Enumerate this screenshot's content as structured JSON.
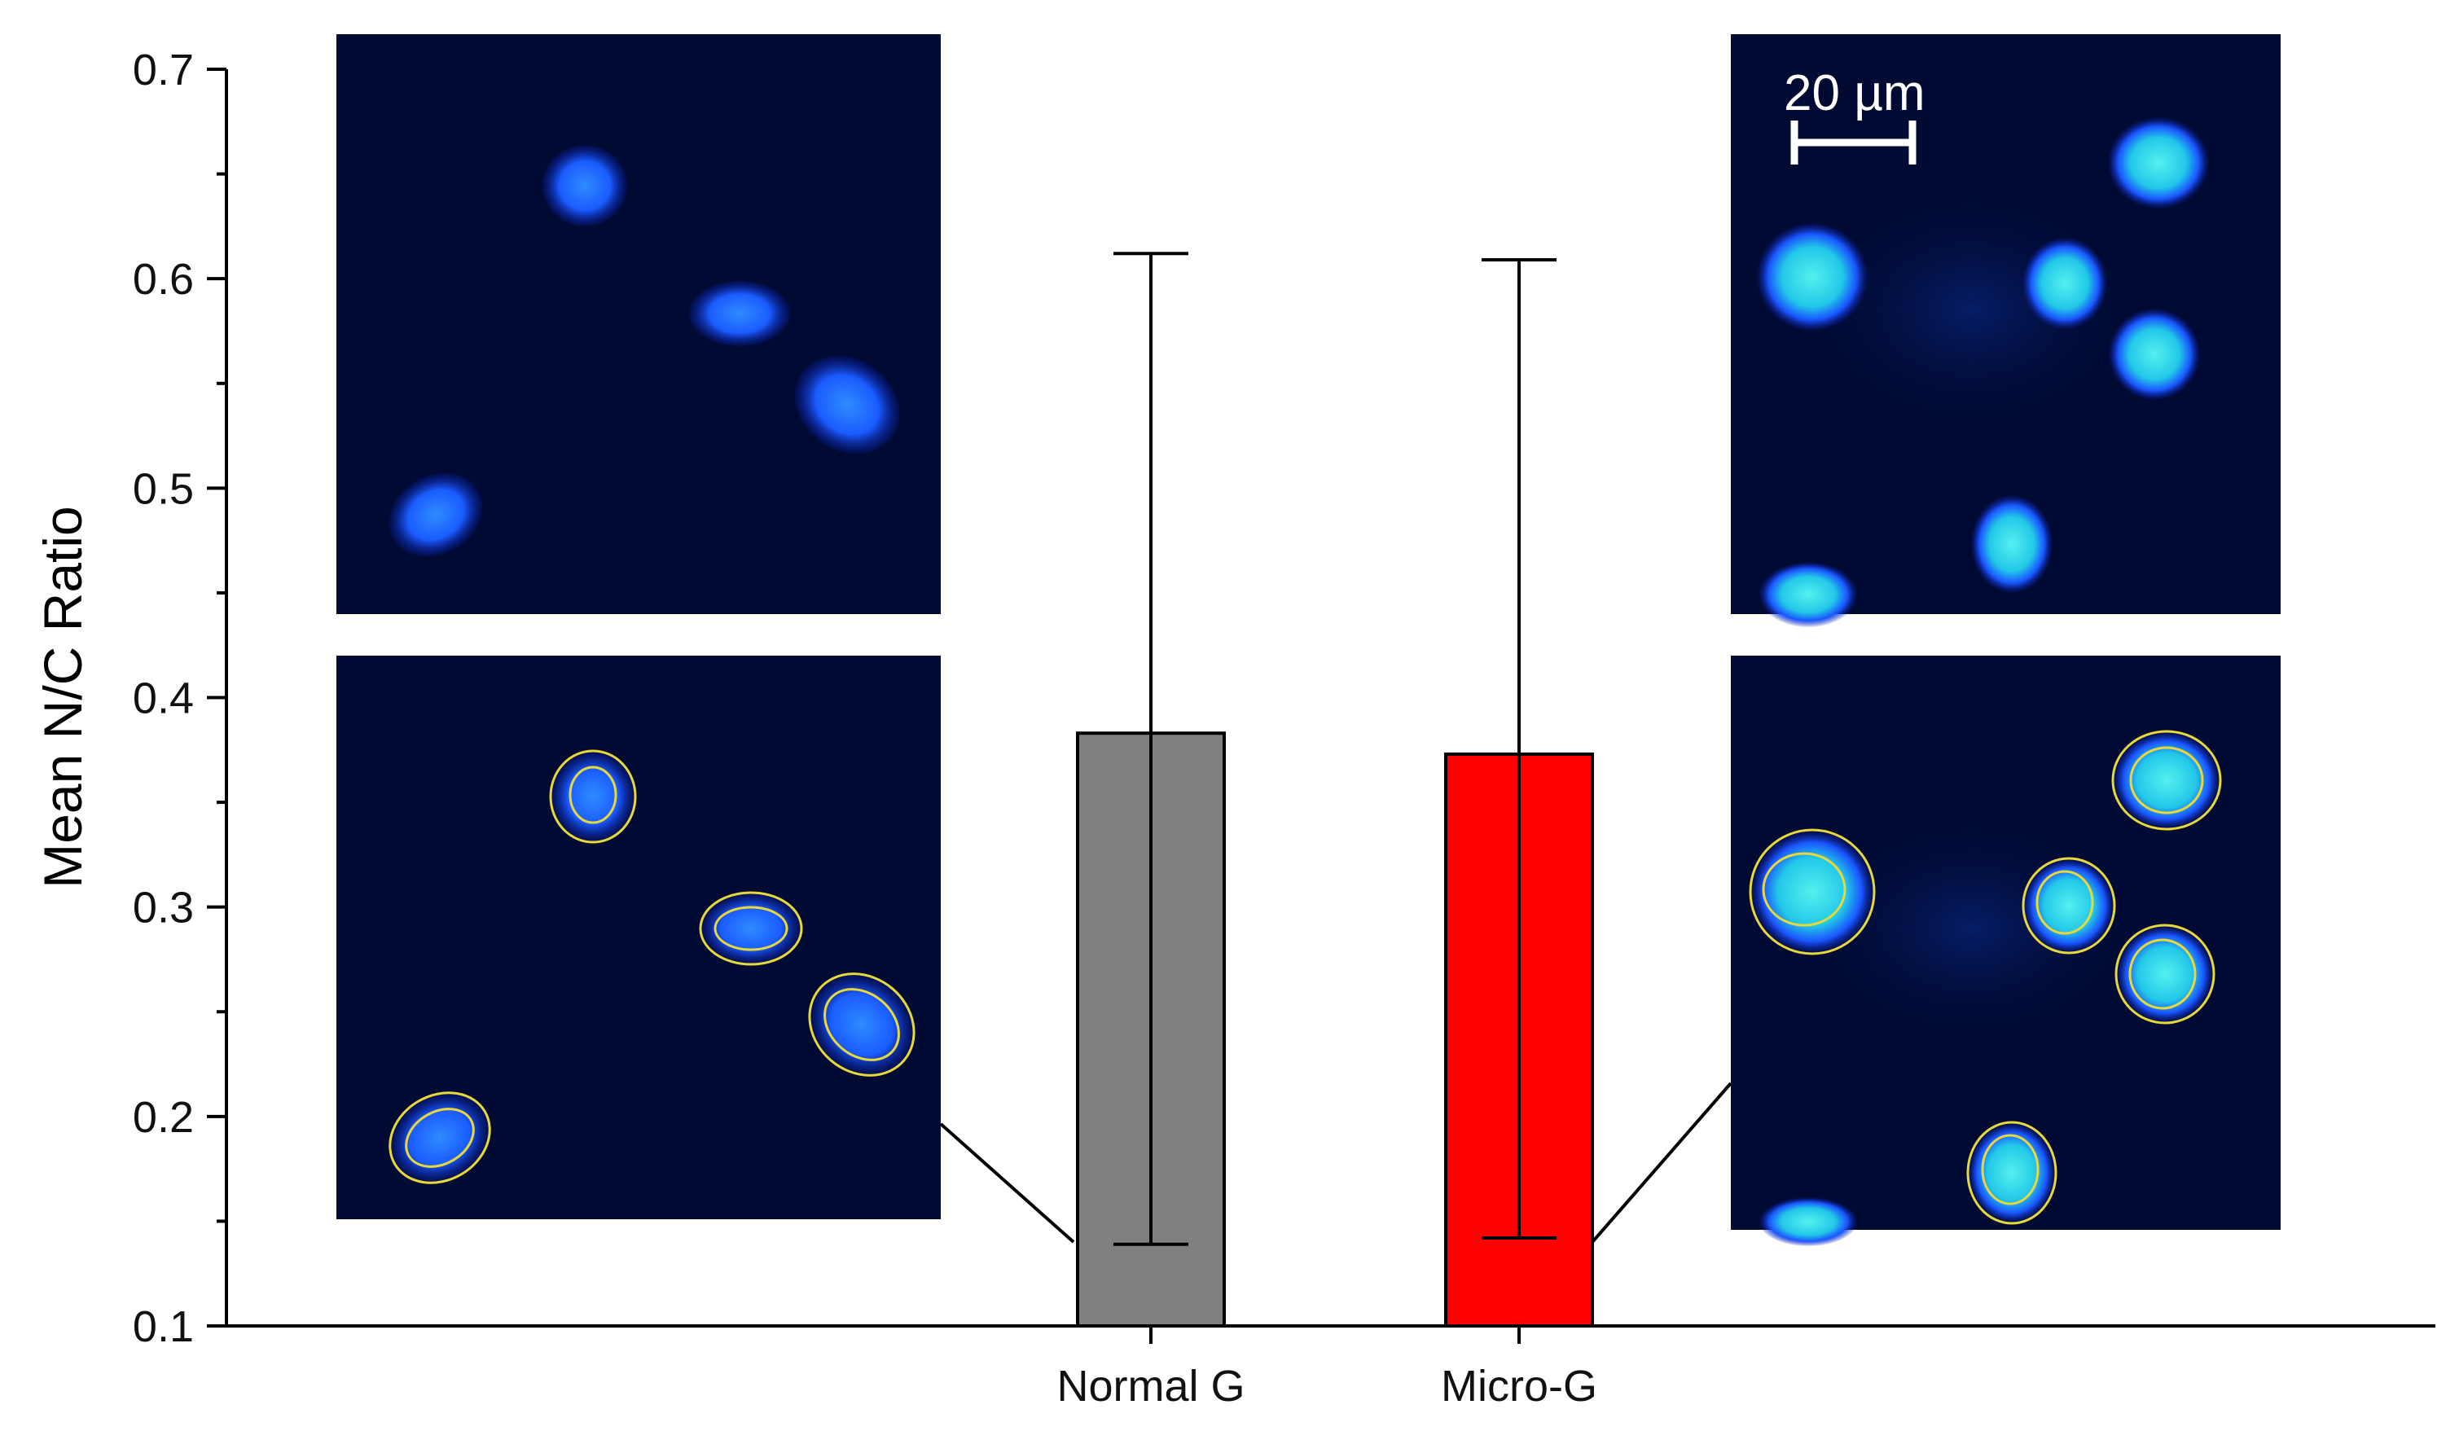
{
  "chart_data": {
    "type": "bar",
    "categories": [
      "Normal G",
      "Micro-G"
    ],
    "values": [
      0.383,
      0.373
    ],
    "error_bars": [
      {
        "low": 0.139,
        "high": 0.612
      },
      {
        "low": 0.142,
        "high": 0.609
      }
    ],
    "ylabel": "Mean N/C Ratio",
    "xlabel": "",
    "ylim": [
      0.1,
      0.7
    ],
    "yticks": [
      "0.1",
      "0.2",
      "0.3",
      "0.4",
      "0.5",
      "0.6",
      "0.7"
    ],
    "colors": {
      "Normal G": "#808080",
      "Micro-G": "#ff0000"
    },
    "grid": false
  },
  "insets": {
    "scale_bar_label": "20 µm",
    "panel_background": "#000a33",
    "nucleus_color": "#1a6cff",
    "outline_color": "#e8d83a"
  }
}
